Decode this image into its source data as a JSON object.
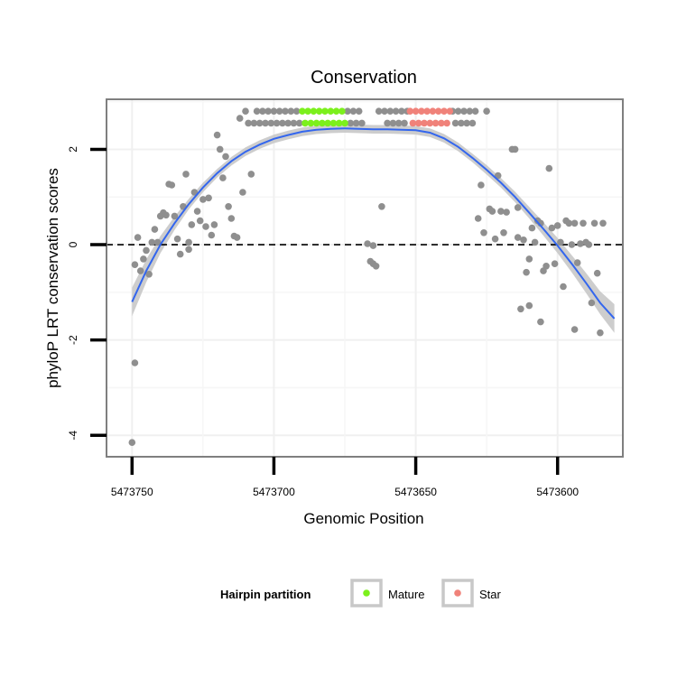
{
  "chart_data": {
    "type": "scatter",
    "title": "Conservation",
    "xlabel": "Genomic Position",
    "ylabel": "phyloP LRT conservation scores",
    "x_reversed": true,
    "xlim": [
      5473759,
      5473577
    ],
    "ylim": [
      -4.45,
      3.05
    ],
    "x_ticks": [
      5473750,
      5473700,
      5473650,
      5473600
    ],
    "x_tick_labels": [
      "5473750",
      "5473700",
      "5473650",
      "5473600"
    ],
    "y_ticks": [
      -4,
      -2,
      0,
      2
    ],
    "y_tick_labels": [
      "-4",
      "-2",
      "0",
      "2"
    ],
    "reference_line": {
      "y": 0,
      "style": "dashed"
    },
    "grid": true,
    "legend": {
      "title": "Hairpin partition",
      "position": "bottom",
      "entries": [
        {
          "label": "Mature",
          "color": "#7cf01c"
        },
        {
          "label": "Star",
          "color": "#f0827a"
        }
      ]
    },
    "colors": {
      "other": "#8f8f8f",
      "mature": "#7cf01c",
      "star": "#f0827a",
      "smooth": "#3366ee",
      "ribbon": "#c8c8c8"
    },
    "points": {
      "other": [
        [
          5473750,
          -4.15
        ],
        [
          5473749,
          -2.48
        ],
        [
          5473749,
          -0.42
        ],
        [
          5473748,
          0.15
        ],
        [
          5473747,
          -0.55
        ],
        [
          5473746,
          -0.3
        ],
        [
          5473745,
          -0.12
        ],
        [
          5473744,
          -0.62
        ],
        [
          5473743,
          0.05
        ],
        [
          5473742,
          0.32
        ],
        [
          5473741,
          0.05
        ],
        [
          5473740,
          0.6
        ],
        [
          5473739,
          0.67
        ],
        [
          5473738,
          0.62
        ],
        [
          5473737,
          1.27
        ],
        [
          5473736,
          1.25
        ],
        [
          5473735,
          0.6
        ],
        [
          5473734,
          0.12
        ],
        [
          5473733,
          -0.2
        ],
        [
          5473732,
          0.8
        ],
        [
          5473731,
          1.48
        ],
        [
          5473730,
          0.05
        ],
        [
          5473730,
          -0.1
        ],
        [
          5473729,
          0.42
        ],
        [
          5473728,
          1.1
        ],
        [
          5473727,
          0.7
        ],
        [
          5473726,
          0.5
        ],
        [
          5473725,
          0.95
        ],
        [
          5473724,
          0.38
        ],
        [
          5473723,
          0.98
        ],
        [
          5473722,
          0.2
        ],
        [
          5473721,
          0.42
        ],
        [
          5473720,
          2.3
        ],
        [
          5473719,
          2.0
        ],
        [
          5473718,
          1.4
        ],
        [
          5473717,
          1.85
        ],
        [
          5473716,
          0.8
        ],
        [
          5473715,
          0.55
        ],
        [
          5473714,
          0.18
        ],
        [
          5473713,
          0.15
        ],
        [
          5473712,
          2.65
        ],
        [
          5473711,
          1.1
        ],
        [
          5473710,
          2.8
        ],
        [
          5473709,
          2.55
        ],
        [
          5473708,
          1.48
        ],
        [
          5473707,
          2.55
        ],
        [
          5473706,
          2.8
        ],
        [
          5473705,
          2.55
        ],
        [
          5473704,
          2.8
        ],
        [
          5473703,
          2.55
        ],
        [
          5473702,
          2.8
        ],
        [
          5473701,
          2.55
        ],
        [
          5473700,
          2.8
        ],
        [
          5473699,
          2.55
        ],
        [
          5473698,
          2.8
        ],
        [
          5473697,
          2.55
        ],
        [
          5473696,
          2.8
        ],
        [
          5473695,
          2.55
        ],
        [
          5473694,
          2.8
        ],
        [
          5473693,
          2.55
        ],
        [
          5473692,
          2.8
        ],
        [
          5473691,
          2.55
        ],
        [
          5473674,
          2.8
        ],
        [
          5473673,
          2.55
        ],
        [
          5473672,
          2.8
        ],
        [
          5473671,
          2.55
        ],
        [
          5473670,
          2.8
        ],
        [
          5473669,
          2.55
        ],
        [
          5473667,
          0.02
        ],
        [
          5473666,
          -0.35
        ],
        [
          5473665,
          -0.02
        ],
        [
          5473665,
          -0.4
        ],
        [
          5473664,
          -0.45
        ],
        [
          5473663,
          2.8
        ],
        [
          5473662,
          0.8
        ],
        [
          5473661,
          2.8
        ],
        [
          5473660,
          2.55
        ],
        [
          5473659,
          2.8
        ],
        [
          5473658,
          2.55
        ],
        [
          5473657,
          2.8
        ],
        [
          5473656,
          2.55
        ],
        [
          5473655,
          2.8
        ],
        [
          5473654,
          2.55
        ],
        [
          5473653,
          2.8
        ],
        [
          5473637,
          2.8
        ],
        [
          5473636,
          2.55
        ],
        [
          5473635,
          2.8
        ],
        [
          5473634,
          2.55
        ],
        [
          5473633,
          2.8
        ],
        [
          5473632,
          2.55
        ],
        [
          5473631,
          2.8
        ],
        [
          5473630,
          2.55
        ],
        [
          5473629,
          2.8
        ],
        [
          5473628,
          0.55
        ],
        [
          5473627,
          1.25
        ],
        [
          5473626,
          0.25
        ],
        [
          5473625,
          2.8
        ],
        [
          5473624,
          0.75
        ],
        [
          5473623,
          0.7
        ],
        [
          5473622,
          0.12
        ],
        [
          5473621,
          1.45
        ],
        [
          5473620,
          0.7
        ],
        [
          5473619,
          0.25
        ],
        [
          5473618,
          0.68
        ],
        [
          5473616,
          2.0
        ],
        [
          5473615,
          2.0
        ],
        [
          5473614,
          0.78
        ],
        [
          5473614,
          0.15
        ],
        [
          5473613,
          -1.35
        ],
        [
          5473612,
          0.1
        ],
        [
          5473611,
          -0.58
        ],
        [
          5473610,
          -1.28
        ],
        [
          5473610,
          -0.3
        ],
        [
          5473609,
          0.35
        ],
        [
          5473608,
          0.05
        ],
        [
          5473607,
          0.5
        ],
        [
          5473606,
          -1.62
        ],
        [
          5473606,
          0.45
        ],
        [
          5473605,
          -0.55
        ],
        [
          5473604,
          -0.45
        ],
        [
          5473603,
          1.6
        ],
        [
          5473602,
          0.35
        ],
        [
          5473601,
          -0.4
        ],
        [
          5473600,
          0.4
        ],
        [
          5473599,
          0.05
        ],
        [
          5473598,
          -0.88
        ],
        [
          5473597,
          0.5
        ],
        [
          5473596,
          0.45
        ],
        [
          5473595,
          0.0
        ],
        [
          5473594,
          -1.78
        ],
        [
          5473594,
          0.45
        ],
        [
          5473593,
          -0.38
        ],
        [
          5473592,
          0.02
        ],
        [
          5473591,
          0.45
        ],
        [
          5473590,
          0.05
        ],
        [
          5473589,
          0.0
        ],
        [
          5473588,
          -1.22
        ],
        [
          5473587,
          0.45
        ],
        [
          5473586,
          -0.6
        ],
        [
          5473585,
          -1.85
        ],
        [
          5473584,
          0.45
        ]
      ],
      "mature": [
        [
          5473690,
          2.8
        ],
        [
          5473689,
          2.55
        ],
        [
          5473688,
          2.8
        ],
        [
          5473687,
          2.55
        ],
        [
          5473686,
          2.8
        ],
        [
          5473685,
          2.55
        ],
        [
          5473684,
          2.8
        ],
        [
          5473683,
          2.55
        ],
        [
          5473682,
          2.8
        ],
        [
          5473681,
          2.55
        ],
        [
          5473680,
          2.8
        ],
        [
          5473679,
          2.55
        ],
        [
          5473678,
          2.8
        ],
        [
          5473677,
          2.55
        ],
        [
          5473676,
          2.8
        ],
        [
          5473675,
          2.55
        ]
      ],
      "star": [
        [
          5473652,
          2.8
        ],
        [
          5473651,
          2.55
        ],
        [
          5473650,
          2.8
        ],
        [
          5473649,
          2.55
        ],
        [
          5473648,
          2.8
        ],
        [
          5473647,
          2.55
        ],
        [
          5473646,
          2.8
        ],
        [
          5473645,
          2.55
        ],
        [
          5473644,
          2.8
        ],
        [
          5473643,
          2.55
        ],
        [
          5473642,
          2.8
        ],
        [
          5473641,
          2.55
        ],
        [
          5473640,
          2.8
        ],
        [
          5473639,
          2.55
        ],
        [
          5473638,
          2.8
        ]
      ]
    },
    "smooth": {
      "x": [
        5473750,
        5473745,
        5473740,
        5473735,
        5473730,
        5473725,
        5473720,
        5473715,
        5473710,
        5473705,
        5473700,
        5473695,
        5473690,
        5473685,
        5473680,
        5473675,
        5473670,
        5473665,
        5473660,
        5473655,
        5473650,
        5473645,
        5473640,
        5473635,
        5473630,
        5473625,
        5473620,
        5473615,
        5473610,
        5473605,
        5473600,
        5473595,
        5473590,
        5473585,
        5473580
      ],
      "y": [
        -1.2,
        -0.55,
        0.0,
        0.45,
        0.85,
        1.2,
        1.5,
        1.75,
        1.95,
        2.1,
        2.22,
        2.3,
        2.37,
        2.41,
        2.43,
        2.44,
        2.43,
        2.42,
        2.42,
        2.41,
        2.4,
        2.35,
        2.23,
        2.05,
        1.82,
        1.57,
        1.3,
        1.0,
        0.67,
        0.33,
        -0.02,
        -0.4,
        -0.8,
        -1.22,
        -1.55
      ],
      "se": [
        0.3,
        0.24,
        0.18,
        0.14,
        0.11,
        0.1,
        0.09,
        0.09,
        0.09,
        0.09,
        0.09,
        0.09,
        0.09,
        0.09,
        0.09,
        0.09,
        0.09,
        0.09,
        0.09,
        0.09,
        0.09,
        0.09,
        0.09,
        0.09,
        0.09,
        0.1,
        0.1,
        0.11,
        0.12,
        0.14,
        0.16,
        0.18,
        0.21,
        0.24,
        0.3
      ]
    }
  }
}
